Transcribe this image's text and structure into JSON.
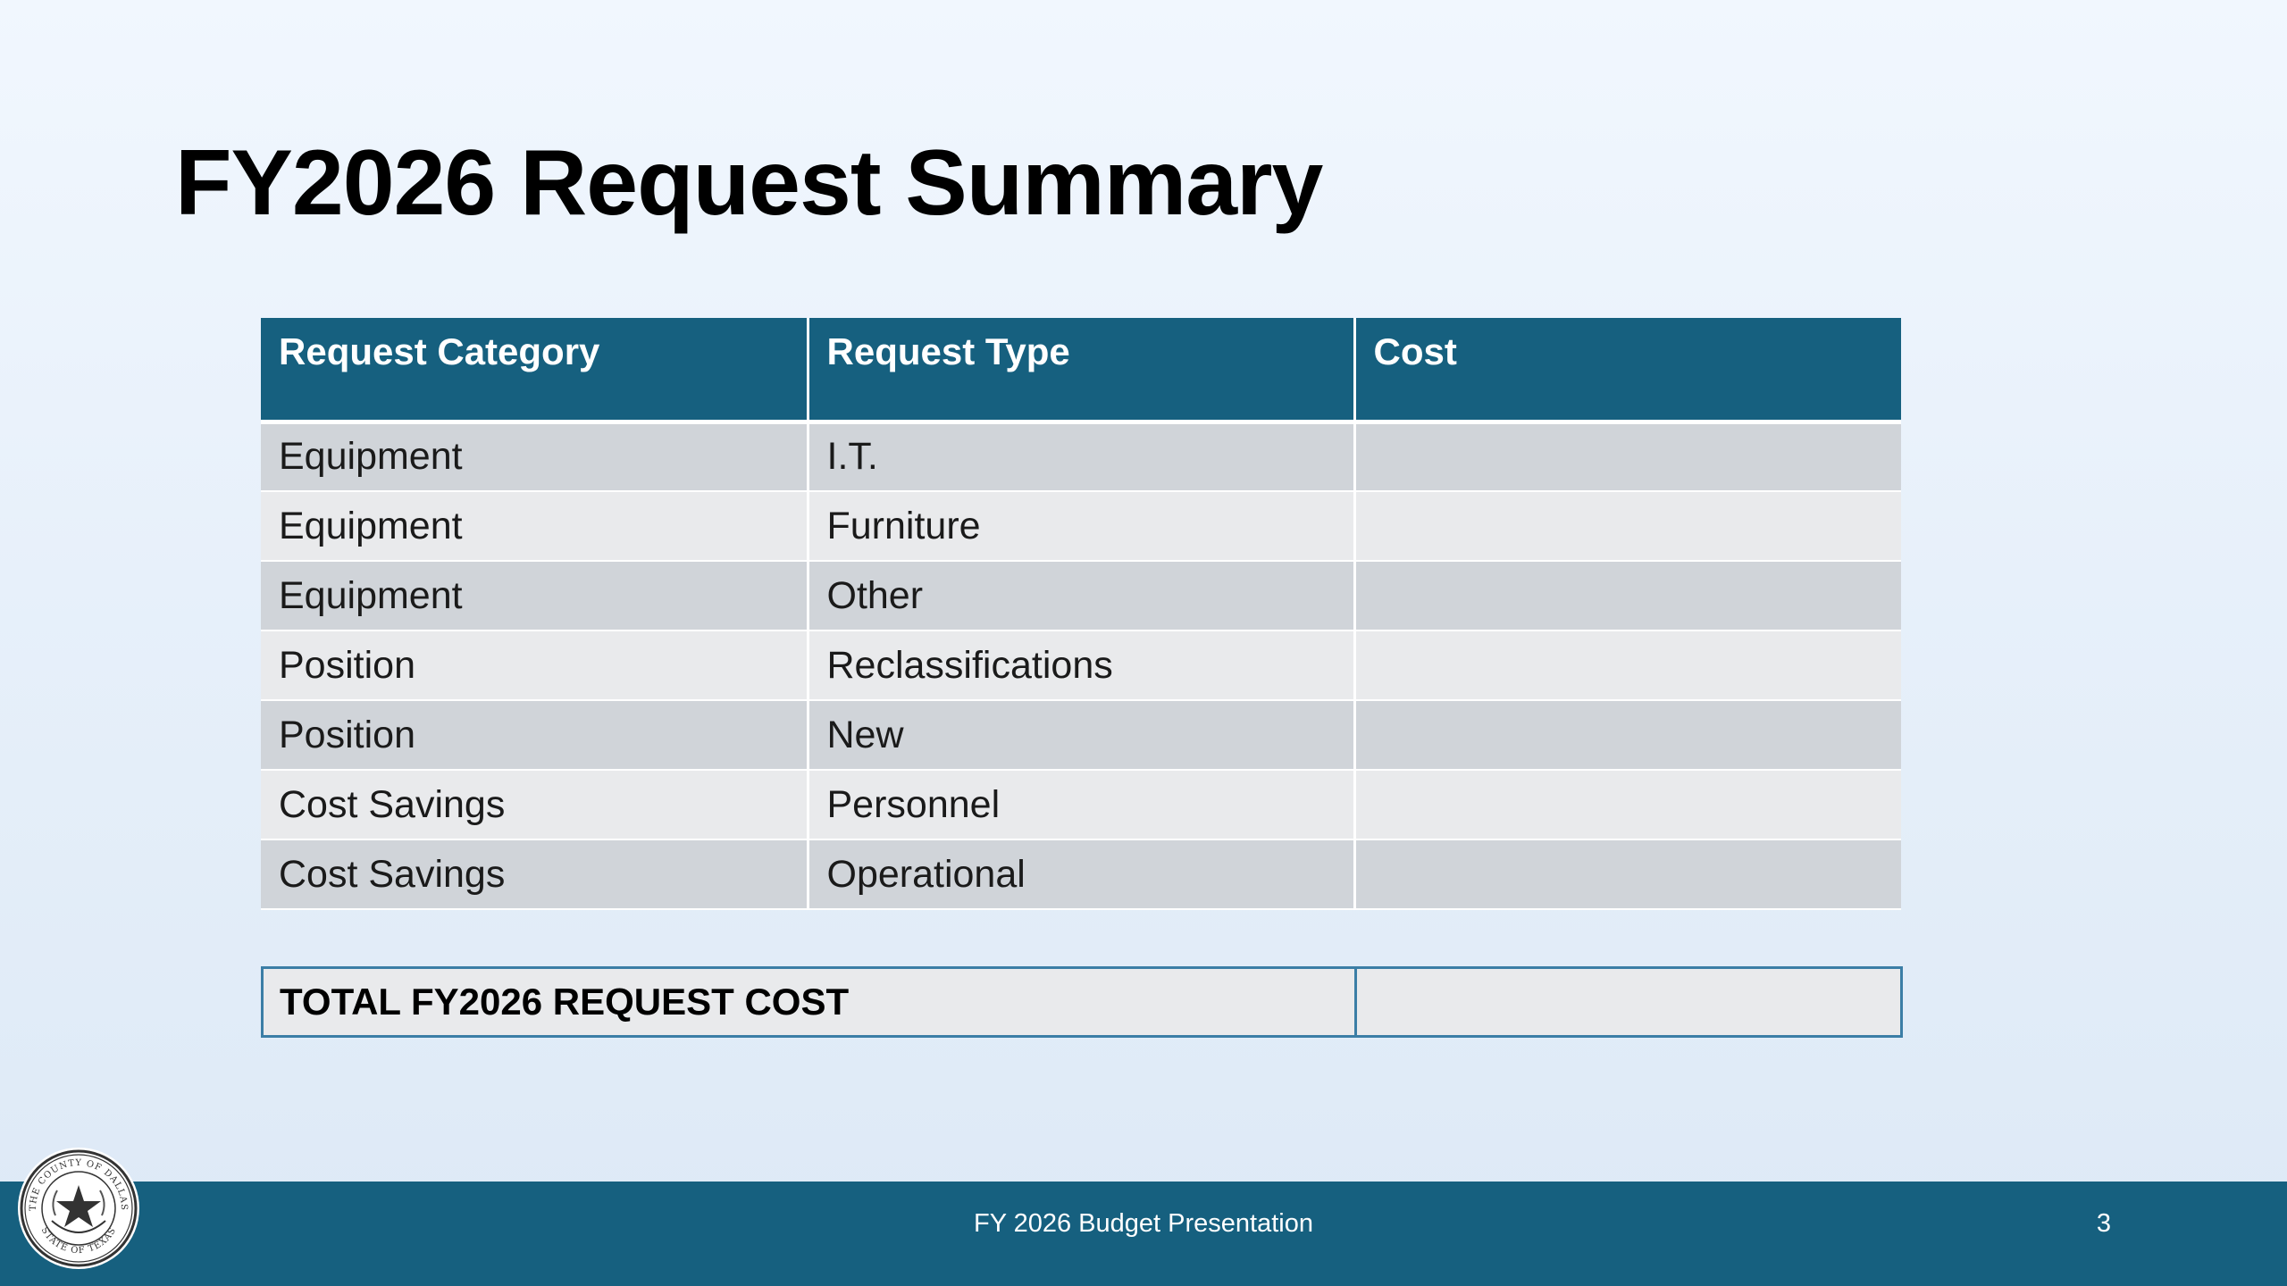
{
  "slide": {
    "title": "FY2026 Request Summary"
  },
  "table": {
    "headers": [
      "Request Category",
      "Request Type",
      "Cost"
    ],
    "rows": [
      {
        "category": "Equipment",
        "type": "I.T.",
        "cost": ""
      },
      {
        "category": "Equipment",
        "type": "Furniture",
        "cost": ""
      },
      {
        "category": "Equipment",
        "type": "Other",
        "cost": ""
      },
      {
        "category": "Position",
        "type": "Reclassifications",
        "cost": ""
      },
      {
        "category": "Position",
        "type": "New",
        "cost": ""
      },
      {
        "category": "Cost Savings",
        "type": "Personnel",
        "cost": ""
      },
      {
        "category": "Cost Savings",
        "type": "Operational",
        "cost": ""
      }
    ]
  },
  "total": {
    "label": "TOTAL FY2026 REQUEST COST",
    "value": ""
  },
  "footer": {
    "text": "FY 2026 Budget Presentation",
    "page_number": "3"
  },
  "seal": {
    "icon": "county-seal-icon",
    "top_text": "THE COUNTY OF DALLAS",
    "bottom_text": "STATE OF TEXAS"
  },
  "colors": {
    "header_bg": "#16607f",
    "footer_bg": "#16607f",
    "row_dark": "#d0d4d9",
    "row_light": "#e9eaec",
    "total_border": "#3b7ea6"
  }
}
